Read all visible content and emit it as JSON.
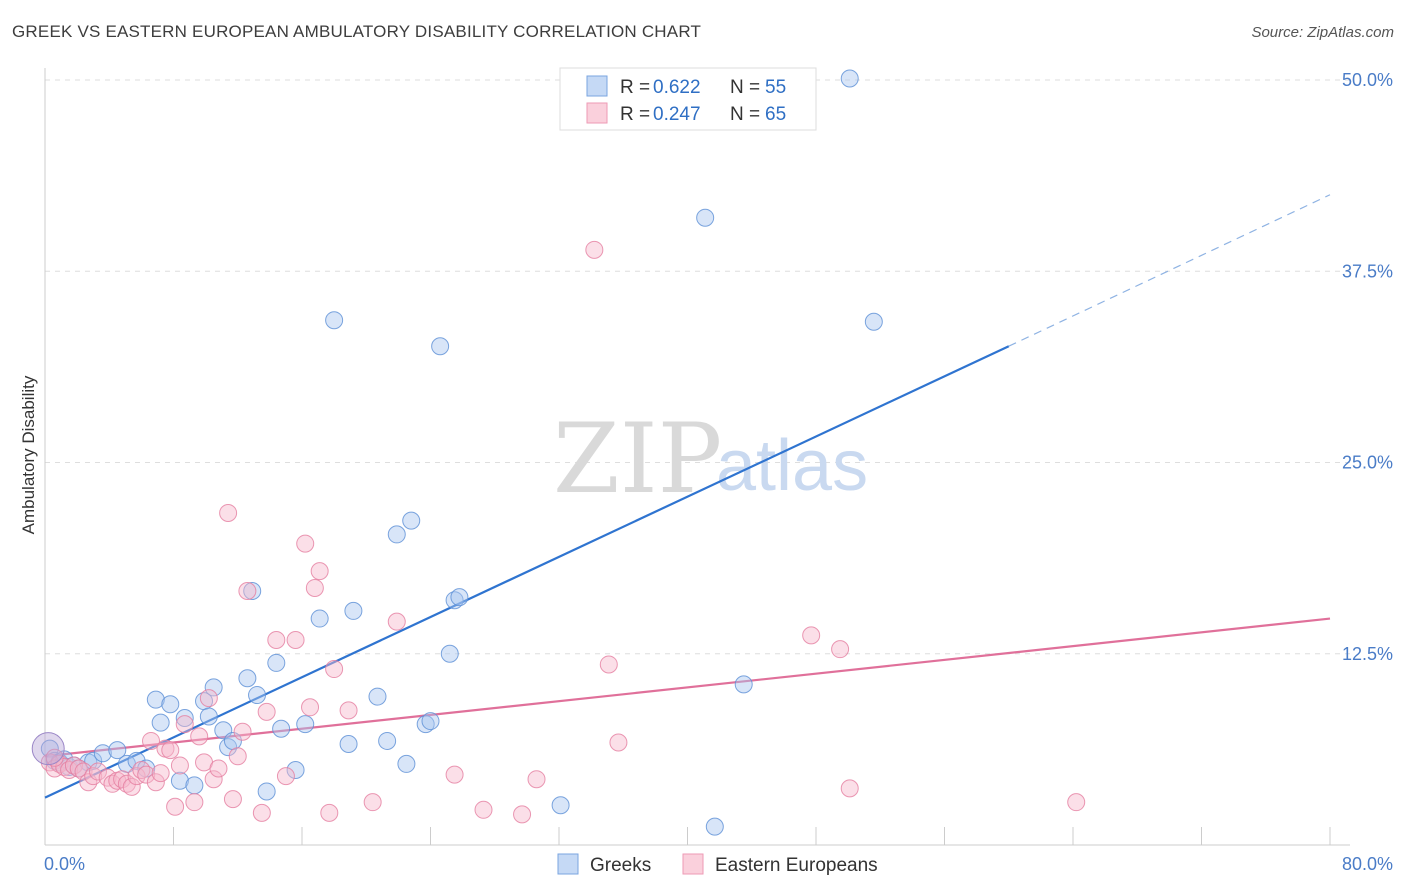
{
  "title": "GREEK VS EASTERN EUROPEAN AMBULATORY DISABILITY CORRELATION CHART",
  "source": "Source: ZipAtlas.com",
  "watermark": {
    "zip": "ZIP",
    "atlas": "atlas"
  },
  "legend": {
    "rows": [
      {
        "r_label": "R = ",
        "r_value": "0.622",
        "n_label": "N = ",
        "n_value": "55"
      },
      {
        "r_label": "R = ",
        "r_value": "0.247",
        "n_label": "N = ",
        "n_value": "65"
      }
    ]
  },
  "chart_data": {
    "type": "scatter",
    "title": "GREEK VS EASTERN EUROPEAN AMBULATORY DISABILITY CORRELATION CHART",
    "xlabel": "",
    "ylabel": "Ambulatory Disability",
    "xlim": [
      0,
      80
    ],
    "ylim": [
      0,
      50
    ],
    "x_tick_labels": [
      "0.0%",
      "80.0%"
    ],
    "y_tick_labels": [
      "12.5%",
      "25.0%",
      "37.5%",
      "50.0%"
    ],
    "y_ticks": [
      12.5,
      25.0,
      37.5,
      50.0
    ],
    "grid": "horizontal dashed",
    "legend_position": "top-center",
    "series": [
      {
        "name": "Greeks",
        "color": "#a8c6f0",
        "edge_color": "#5b8fd6",
        "line_color": "#2f74d0",
        "r": 0.622,
        "n": 55,
        "trend": {
          "x0": 0,
          "y0": 3.1,
          "x1": 60,
          "y1": 32.6,
          "dash_to_x": 80,
          "dash_to_y": 42.5
        },
        "points": [
          [
            0.3,
            6.3
          ],
          [
            0.6,
            5.5
          ],
          [
            0.9,
            5.4
          ],
          [
            1.2,
            5.6
          ],
          [
            1.5,
            5.1
          ],
          [
            1.8,
            5.2
          ],
          [
            2.1,
            5.0
          ],
          [
            2.7,
            5.4
          ],
          [
            3.0,
            5.5
          ],
          [
            3.6,
            6.0
          ],
          [
            4.5,
            6.2
          ],
          [
            5.1,
            5.3
          ],
          [
            5.7,
            5.5
          ],
          [
            6.3,
            5.0
          ],
          [
            6.9,
            9.5
          ],
          [
            7.2,
            8.0
          ],
          [
            7.8,
            9.2
          ],
          [
            8.4,
            4.2
          ],
          [
            8.7,
            8.3
          ],
          [
            9.3,
            3.9
          ],
          [
            9.9,
            9.4
          ],
          [
            10.2,
            8.4
          ],
          [
            10.5,
            10.3
          ],
          [
            11.1,
            7.5
          ],
          [
            11.4,
            6.4
          ],
          [
            11.7,
            6.8
          ],
          [
            12.6,
            10.9
          ],
          [
            13.2,
            9.8
          ],
          [
            13.8,
            3.5
          ],
          [
            14.4,
            11.9
          ],
          [
            14.7,
            7.6
          ],
          [
            15.6,
            4.9
          ],
          [
            16.2,
            7.9
          ],
          [
            17.1,
            14.8
          ],
          [
            18.0,
            34.3
          ],
          [
            18.9,
            6.6
          ],
          [
            19.2,
            15.3
          ],
          [
            20.7,
            9.7
          ],
          [
            21.3,
            6.8
          ],
          [
            21.9,
            20.3
          ],
          [
            22.5,
            5.3
          ],
          [
            22.8,
            21.2
          ],
          [
            23.7,
            7.9
          ],
          [
            24.0,
            8.1
          ],
          [
            24.6,
            32.6
          ],
          [
            25.2,
            12.5
          ],
          [
            25.5,
            16.0
          ],
          [
            25.8,
            16.2
          ],
          [
            32.1,
            2.6
          ],
          [
            41.1,
            41.0
          ],
          [
            41.7,
            1.2
          ],
          [
            43.5,
            10.5
          ],
          [
            50.1,
            50.1
          ],
          [
            51.6,
            34.2
          ],
          [
            12.9,
            16.6
          ]
        ]
      },
      {
        "name": "Eastern Europeans",
        "color": "#f7b8cb",
        "edge_color": "#e57ea0",
        "line_color": "#e0709a",
        "r": 0.247,
        "n": 65,
        "trend": {
          "x0": 0,
          "y0": 5.8,
          "x1": 80,
          "y1": 14.8
        },
        "points": [
          [
            0.3,
            5.4
          ],
          [
            0.6,
            5.0
          ],
          [
            0.9,
            5.3
          ],
          [
            1.2,
            5.1
          ],
          [
            1.5,
            4.9
          ],
          [
            1.8,
            5.2
          ],
          [
            2.1,
            5.0
          ],
          [
            2.4,
            4.8
          ],
          [
            2.7,
            4.1
          ],
          [
            3.0,
            4.5
          ],
          [
            3.3,
            4.8
          ],
          [
            3.9,
            4.4
          ],
          [
            4.2,
            4.0
          ],
          [
            4.5,
            4.2
          ],
          [
            4.8,
            4.3
          ],
          [
            5.1,
            4.0
          ],
          [
            5.4,
            3.8
          ],
          [
            5.7,
            4.5
          ],
          [
            6.0,
            4.9
          ],
          [
            6.3,
            4.6
          ],
          [
            6.6,
            6.8
          ],
          [
            6.9,
            4.1
          ],
          [
            7.2,
            4.7
          ],
          [
            7.5,
            6.3
          ],
          [
            7.8,
            6.2
          ],
          [
            8.1,
            2.5
          ],
          [
            8.4,
            5.2
          ],
          [
            8.7,
            7.9
          ],
          [
            9.3,
            2.8
          ],
          [
            9.6,
            7.1
          ],
          [
            9.9,
            5.4
          ],
          [
            10.2,
            9.6
          ],
          [
            10.5,
            4.3
          ],
          [
            10.8,
            5.0
          ],
          [
            11.4,
            21.7
          ],
          [
            11.7,
            3.0
          ],
          [
            12.0,
            5.8
          ],
          [
            12.3,
            7.4
          ],
          [
            12.6,
            16.6
          ],
          [
            13.5,
            2.1
          ],
          [
            13.8,
            8.7
          ],
          [
            14.4,
            13.4
          ],
          [
            15.0,
            4.5
          ],
          [
            15.6,
            13.4
          ],
          [
            16.2,
            19.7
          ],
          [
            16.5,
            9.0
          ],
          [
            16.8,
            16.8
          ],
          [
            17.1,
            17.9
          ],
          [
            17.7,
            2.1
          ],
          [
            18.0,
            11.5
          ],
          [
            18.9,
            8.8
          ],
          [
            20.4,
            2.8
          ],
          [
            21.9,
            14.6
          ],
          [
            25.5,
            4.6
          ],
          [
            27.3,
            2.3
          ],
          [
            29.7,
            2.0
          ],
          [
            30.6,
            4.3
          ],
          [
            34.2,
            38.9
          ],
          [
            35.1,
            11.8
          ],
          [
            35.7,
            6.7
          ],
          [
            47.7,
            13.7
          ],
          [
            49.5,
            12.8
          ],
          [
            50.1,
            3.7
          ],
          [
            64.2,
            2.8
          ],
          [
            0.6,
            5.7
          ]
        ]
      }
    ]
  }
}
